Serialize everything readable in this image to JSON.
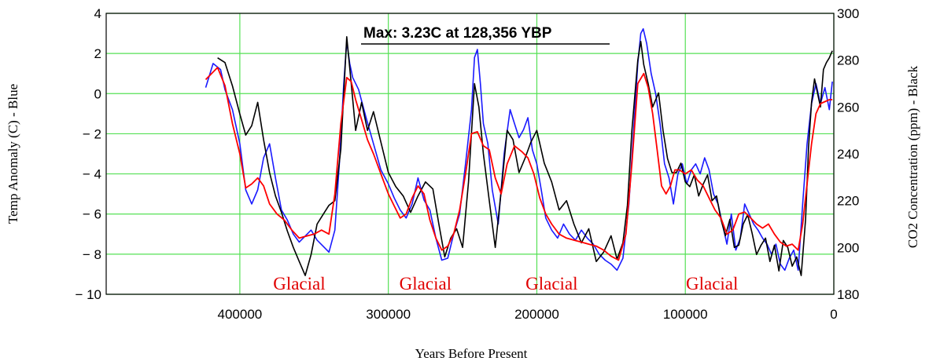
{
  "chart_data": {
    "type": "line",
    "title": "",
    "xlabel": "Years Before Present",
    "ylabel_left": "Temp Anomaly (C) - Blue",
    "ylabel_right": "CO2 Concentration (ppm) - Black",
    "xlim": [
      490000,
      0
    ],
    "ylim_left": [
      -10,
      4
    ],
    "ylim_right": [
      180,
      300
    ],
    "x_ticks": [
      400000,
      300000,
      200000,
      100000,
      0
    ],
    "y_left_ticks": [
      4,
      2,
      0,
      -2,
      -4,
      -6,
      -8,
      -10
    ],
    "y_left_tick_labels": [
      "4",
      "2",
      "0",
      "− 2",
      "− 4",
      "− 6",
      "− 8",
      "− 10"
    ],
    "y_right_ticks": [
      300,
      280,
      260,
      240,
      220,
      200,
      180
    ],
    "grid": true,
    "annotation": {
      "text": "Max: 3.23C at 128,356 YBP",
      "x": 128356,
      "y": 3.23
    },
    "region_labels": [
      {
        "text": "Glacial",
        "x": 360000
      },
      {
        "text": "Glacial",
        "x": 275000
      },
      {
        "text": "Glacial",
        "x": 190000
      },
      {
        "text": "Glacial",
        "x": 82000
      }
    ],
    "colors": {
      "temperature": "#1a1aff",
      "co2": "#000000",
      "smoothed": "#ff0000",
      "grid": "#55e055",
      "glacial_label": "#e00000"
    },
    "series": [
      {
        "axis": "left",
        "color": "#1a1aff",
        "x": [
          423000,
          418000,
          413000,
          410000,
          405000,
          400000,
          396000,
          392000,
          388000,
          384000,
          380000,
          376000,
          372000,
          368000,
          364000,
          360000,
          356000,
          352000,
          348000,
          344000,
          340000,
          336000,
          333000,
          330000,
          328000,
          326000,
          324000,
          320000,
          315000,
          310000,
          305000,
          300000,
          296000,
          292000,
          288000,
          284000,
          280000,
          276000,
          272000,
          268000,
          264000,
          260000,
          256000,
          252000,
          248000,
          244000,
          242000,
          240000,
          238000,
          236000,
          233000,
          230000,
          226000,
          222000,
          218000,
          215000,
          212000,
          209000,
          206000,
          203000,
          200000,
          197000,
          194000,
          190000,
          186000,
          182000,
          178000,
          174000,
          170000,
          166000,
          162000,
          158000,
          154000,
          150000,
          146000,
          142000,
          138000,
          135000,
          132000,
          130000,
          128356,
          126000,
          123000,
          120000,
          117000,
          114000,
          111000,
          108000,
          105000,
          102000,
          99000,
          96000,
          93000,
          90000,
          87000,
          84000,
          81000,
          78000,
          75000,
          72000,
          69000,
          66000,
          63000,
          60000,
          57000,
          54000,
          51000,
          48000,
          45000,
          42000,
          39000,
          36000,
          33000,
          30000,
          27000,
          24000,
          21000,
          18000,
          15000,
          12000,
          9000,
          6000,
          3000,
          1000
        ],
        "y": [
          0.3,
          1.5,
          1.2,
          0.2,
          -0.8,
          -2.5,
          -4.8,
          -5.5,
          -4.8,
          -3.2,
          -2.5,
          -4.2,
          -5.8,
          -6.3,
          -7.0,
          -7.4,
          -7.1,
          -6.8,
          -7.3,
          -7.6,
          -7.9,
          -6.8,
          -3.5,
          0.5,
          2.6,
          1.5,
          0.8,
          0.2,
          -1.2,
          -2.5,
          -3.8,
          -4.5,
          -5.2,
          -5.8,
          -6.2,
          -5.5,
          -4.2,
          -5.3,
          -5.8,
          -7.2,
          -8.3,
          -8.2,
          -7.0,
          -6.0,
          -3.5,
          -0.8,
          1.8,
          2.2,
          0.5,
          -1.5,
          -2.5,
          -4.8,
          -6.5,
          -3.0,
          -0.8,
          -1.5,
          -2.2,
          -1.8,
          -1.2,
          -2.8,
          -3.5,
          -4.8,
          -6.2,
          -6.8,
          -7.2,
          -6.5,
          -7.0,
          -7.3,
          -6.8,
          -7.2,
          -7.5,
          -8.0,
          -8.3,
          -8.5,
          -8.8,
          -8.2,
          -5.5,
          -2.0,
          1.5,
          3.0,
          3.23,
          2.5,
          1.0,
          0.0,
          -1.5,
          -3.5,
          -4.2,
          -5.5,
          -4.0,
          -3.5,
          -4.5,
          -3.8,
          -3.5,
          -4.0,
          -3.2,
          -3.8,
          -5.0,
          -5.5,
          -6.5,
          -7.5,
          -6.0,
          -7.8,
          -7.2,
          -5.5,
          -6.0,
          -6.5,
          -6.8,
          -7.2,
          -7.5,
          -8.0,
          -7.5,
          -8.5,
          -8.8,
          -8.2,
          -7.8,
          -8.8,
          -5.5,
          -2.5,
          -0.5,
          0.5,
          -0.5,
          0.3,
          -0.8,
          0.6
        ]
      },
      {
        "axis": "right",
        "color": "#000000",
        "x": [
          415000,
          410000,
          405000,
          400000,
          396000,
          392000,
          388000,
          384000,
          380000,
          376000,
          372000,
          368000,
          364000,
          360000,
          356000,
          352000,
          348000,
          344000,
          340000,
          336000,
          332000,
          328000,
          325000,
          322000,
          318000,
          314000,
          310000,
          305000,
          300000,
          295000,
          290000,
          285000,
          280000,
          275000,
          270000,
          266000,
          262000,
          258000,
          254000,
          250000,
          246000,
          242000,
          239000,
          236000,
          232000,
          228000,
          224000,
          220000,
          216000,
          212000,
          208000,
          204000,
          200000,
          195000,
          190000,
          185000,
          180000,
          175000,
          170000,
          165000,
          160000,
          155000,
          150000,
          146000,
          142000,
          139000,
          136000,
          132000,
          130000,
          128000,
          125000,
          122000,
          118000,
          115000,
          112000,
          109000,
          106000,
          103000,
          100000,
          97000,
          94000,
          91000,
          88000,
          85000,
          82000,
          79000,
          76000,
          73000,
          70000,
          67000,
          64000,
          61000,
          58000,
          55000,
          52000,
          49000,
          46000,
          43000,
          40000,
          37000,
          34000,
          31000,
          28000,
          25000,
          22000,
          19000,
          17000,
          15000,
          13000,
          11000,
          9000,
          7000,
          5000,
          3000,
          1000
        ],
        "y": [
          281,
          279,
          269,
          257,
          248,
          252,
          262,
          246,
          232,
          222,
          215,
          207,
          200,
          194,
          188,
          197,
          210,
          214,
          218,
          220,
          242,
          290,
          270,
          250,
          262,
          250,
          258,
          245,
          232,
          226,
          222,
          215,
          222,
          228,
          225,
          210,
          196,
          204,
          208,
          200,
          228,
          270,
          260,
          240,
          220,
          200,
          224,
          250,
          246,
          232,
          238,
          245,
          250,
          236,
          228,
          216,
          220,
          210,
          202,
          208,
          194,
          198,
          205,
          195,
          202,
          218,
          250,
          280,
          288,
          278,
          270,
          260,
          266,
          250,
          238,
          232,
          232,
          236,
          228,
          226,
          231,
          222,
          227,
          231,
          220,
          222,
          212,
          205,
          212,
          200,
          201,
          210,
          214,
          206,
          197,
          201,
          204,
          194,
          201,
          190,
          203,
          200,
          192,
          196,
          188,
          212,
          243,
          262,
          272,
          266,
          260,
          276,
          279,
          281,
          284
        ]
      },
      {
        "axis": "left",
        "color": "#ff0000",
        "x": [
          423000,
          415000,
          410000,
          405000,
          400000,
          396000,
          392000,
          388000,
          384000,
          380000,
          375000,
          370000,
          365000,
          360000,
          355000,
          350000,
          345000,
          340000,
          336000,
          332000,
          328000,
          325000,
          322000,
          318000,
          314000,
          310000,
          305000,
          300000,
          296000,
          292000,
          288000,
          284000,
          280000,
          276000,
          272000,
          268000,
          264000,
          260000,
          256000,
          252000,
          248000,
          244000,
          240000,
          236000,
          232000,
          228000,
          224000,
          220000,
          215000,
          210000,
          206000,
          202000,
          198000,
          194000,
          190000,
          185000,
          180000,
          175000,
          170000,
          165000,
          160000,
          155000,
          150000,
          145000,
          140000,
          136000,
          132000,
          128000,
          125000,
          122000,
          119000,
          116000,
          113000,
          110000,
          107000,
          104000,
          100000,
          96000,
          92000,
          88000,
          84000,
          80000,
          76000,
          72000,
          68000,
          64000,
          60000,
          56000,
          52000,
          48000,
          44000,
          40000,
          36000,
          32000,
          28000,
          24000,
          21000,
          18000,
          15000,
          12000,
          9000,
          6000,
          3000,
          1000
        ],
        "y": [
          0.7,
          1.3,
          0.4,
          -1.5,
          -3.0,
          -4.7,
          -4.5,
          -4.2,
          -4.6,
          -5.5,
          -6.0,
          -6.3,
          -6.8,
          -7.2,
          -7.1,
          -7.0,
          -6.8,
          -7.0,
          -5.0,
          -1.5,
          0.8,
          0.6,
          -0.3,
          -1.3,
          -2.3,
          -3.0,
          -4.0,
          -5.0,
          -5.6,
          -6.2,
          -6.0,
          -5.2,
          -4.6,
          -5.0,
          -6.3,
          -7.2,
          -7.8,
          -7.6,
          -7.0,
          -5.8,
          -4.0,
          -2.0,
          -1.9,
          -2.6,
          -2.8,
          -4.2,
          -5.0,
          -3.5,
          -2.6,
          -2.9,
          -3.2,
          -4.0,
          -5.2,
          -6.0,
          -6.5,
          -7.0,
          -7.2,
          -7.3,
          -7.4,
          -7.5,
          -7.6,
          -7.8,
          -8.1,
          -8.3,
          -7.0,
          -3.5,
          0.5,
          1.0,
          0.3,
          -1.0,
          -2.8,
          -4.6,
          -5.0,
          -4.6,
          -3.8,
          -3.8,
          -4.0,
          -3.8,
          -4.3,
          -4.6,
          -5.2,
          -5.8,
          -6.2,
          -7.0,
          -6.8,
          -6.0,
          -5.9,
          -6.2,
          -6.5,
          -6.7,
          -6.5,
          -7.0,
          -7.4,
          -7.6,
          -7.5,
          -7.8,
          -6.5,
          -4.5,
          -2.5,
          -1.0,
          -0.5,
          -0.4,
          -0.3,
          -0.3
        ]
      }
    ]
  }
}
